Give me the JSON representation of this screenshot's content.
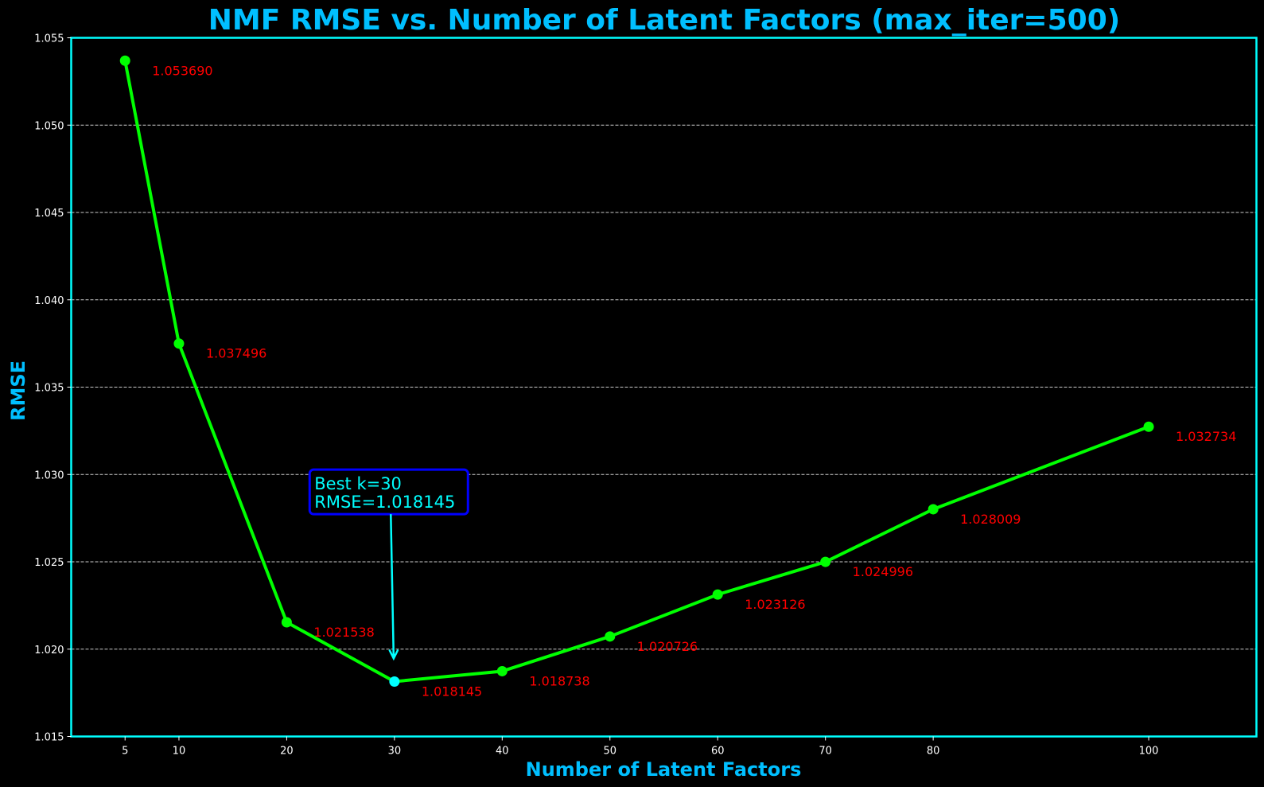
{
  "chart_data": {
    "type": "line",
    "title": "NMF RMSE vs. Number of Latent Factors (max_iter=500)",
    "xlabel": "Number of Latent Factors",
    "ylabel": "RMSE",
    "x": [
      5,
      10,
      20,
      30,
      40,
      50,
      60,
      70,
      80,
      100
    ],
    "xticks": [
      "5",
      "10",
      "20",
      "30",
      "40",
      "50",
      "60",
      "70",
      "80",
      "100"
    ],
    "xlim": [
      0,
      110
    ],
    "ylim": [
      1.015,
      1.055
    ],
    "yticks": [
      "1.015",
      "1.020",
      "1.025",
      "1.030",
      "1.035",
      "1.040",
      "1.045",
      "1.050",
      "1.055"
    ],
    "series": [
      {
        "values": [
          1.05369,
          1.037496,
          1.021538,
          1.018145,
          1.018738,
          1.020726,
          1.023126,
          1.024996,
          1.028009,
          1.032734
        ],
        "labels": [
          "1.053690",
          "1.037496",
          "1.021538",
          "1.018145",
          "1.018738",
          "1.020726",
          "1.023126",
          "1.024996",
          "1.028009",
          "1.032734"
        ],
        "color": "#00ff00"
      }
    ],
    "best": {
      "x": 30,
      "y": 1.018145,
      "color": "#00ffff"
    },
    "annotation": {
      "line1": "Best k=30",
      "line2": "RMSE=1.018145",
      "text_x": 22.5,
      "text_y": 1.028
    },
    "grid": {
      "y": true,
      "x": false,
      "style": "dashed"
    },
    "colors": {
      "background": "#000000",
      "frame": "#00ffff",
      "title": "#00bfff",
      "data_label": "#ff0000",
      "annotation_text": "#00ffff",
      "annotation_box": "#0000ff",
      "tick": "#ffffff",
      "grid": "#cccccc"
    }
  }
}
